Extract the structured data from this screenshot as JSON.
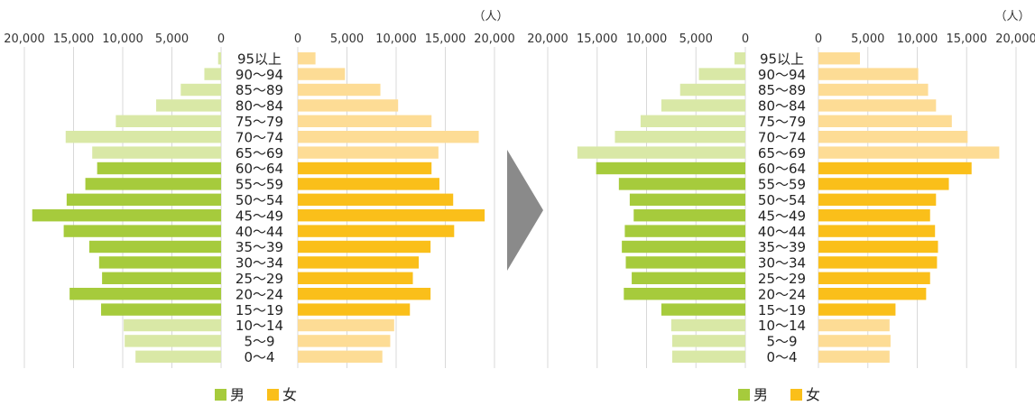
{
  "colors": {
    "male_light": "#d9e8a6",
    "male_dark": "#a6cb3c",
    "female_light": "#fddc95",
    "female_dark": "#fabf1a",
    "grid": "#d8d8d8",
    "arrow": "#8a8a8a"
  },
  "legend": {
    "male": "男",
    "female": "女"
  },
  "chart_data": [
    {
      "type": "bar",
      "orientation": "horizontal-pyramid",
      "unit": "（人）",
      "categories": [
        "95以上",
        "90～94",
        "85～89",
        "80～84",
        "75～79",
        "70～74",
        "65～69",
        "60～64",
        "55～59",
        "50～54",
        "45～49",
        "40～44",
        "35～39",
        "30～34",
        "25～29",
        "20～24",
        "15～19",
        "10～14",
        "5～9",
        "0～4"
      ],
      "xlim": [
        0,
        20000
      ],
      "ticks": [
        "20,000",
        "15,000",
        "10,000",
        "5,000",
        "0"
      ],
      "ticks_right": [
        "0",
        "5,000",
        "10,000",
        "15,000",
        "20,000"
      ],
      "highlighted_range": "15～64",
      "series": [
        {
          "name": "男",
          "values": [
            300,
            1700,
            4100,
            6600,
            10700,
            15800,
            13100,
            12600,
            13800,
            15700,
            19200,
            16000,
            13400,
            12400,
            12100,
            15400,
            12200,
            9900,
            9800,
            8700
          ]
        },
        {
          "name": "女",
          "values": [
            1800,
            4800,
            8400,
            10200,
            13600,
            18400,
            14300,
            13600,
            14400,
            15800,
            19000,
            15900,
            13500,
            12300,
            11700,
            13500,
            11400,
            9800,
            9400,
            8600
          ]
        }
      ]
    },
    {
      "type": "bar",
      "orientation": "horizontal-pyramid",
      "unit": "（人）",
      "categories": [
        "95以上",
        "90～94",
        "85～89",
        "80～84",
        "75～79",
        "70～74",
        "65～69",
        "60～64",
        "55～59",
        "50～54",
        "45～49",
        "40～44",
        "35～39",
        "30～34",
        "25～29",
        "20～24",
        "15～19",
        "10～14",
        "5～9",
        "0～4"
      ],
      "xlim": [
        0,
        20000
      ],
      "ticks": [
        "20,000",
        "15,000",
        "10,000",
        "5,000",
        "0"
      ],
      "ticks_right": [
        "0",
        "5,000",
        "10,000",
        "15,000",
        "20,000"
      ],
      "highlighted_range": "15～64",
      "series": [
        {
          "name": "男",
          "values": [
            1100,
            4700,
            6600,
            8500,
            10600,
            13200,
            17000,
            15100,
            12800,
            11700,
            11300,
            12200,
            12500,
            12100,
            11500,
            12300,
            8500,
            7500,
            7400,
            7400
          ]
        },
        {
          "name": "女",
          "values": [
            4200,
            10100,
            11100,
            11900,
            13500,
            15100,
            18300,
            15500,
            13200,
            11900,
            11300,
            11800,
            12100,
            12000,
            11300,
            10900,
            7800,
            7200,
            7300,
            7200
          ]
        }
      ]
    }
  ]
}
